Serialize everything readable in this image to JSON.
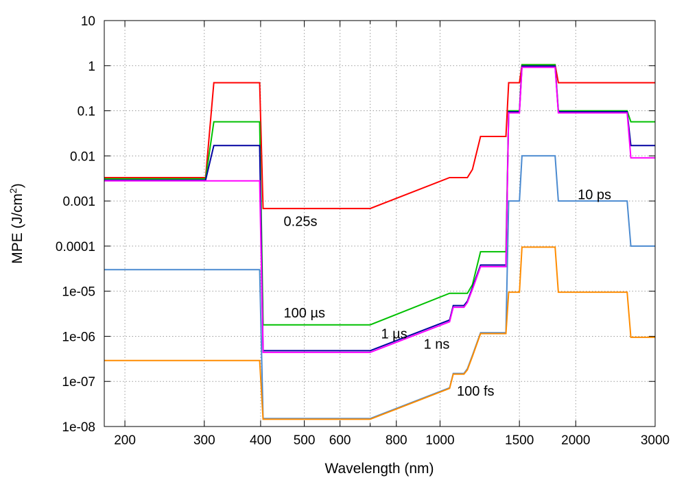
{
  "chart_data": {
    "type": "line",
    "title": "",
    "xlabel": "Wavelength (nm)",
    "ylabel_main": "MPE (J/cm",
    "ylabel_sup": "2",
    "ylabel_tail": ")",
    "x_scale": "log",
    "y_scale": "log",
    "xlim": [
      180,
      3000
    ],
    "ylim": [
      1e-08,
      10
    ],
    "grid": true,
    "x_major_ticks": [
      200,
      300,
      400,
      500,
      600,
      800,
      1000,
      1500,
      2000,
      3000
    ],
    "x_minor_ticks": [
      700
    ],
    "y_ticks": [
      1e-08,
      1e-07,
      1e-06,
      1e-05,
      0.0001,
      0.001,
      0.01,
      0.1,
      1,
      10
    ],
    "y_tick_labels": [
      "1e-08",
      "1e-07",
      "1e-06",
      "1e-05",
      "0.0001",
      "0.001",
      "0.01",
      "0.1",
      "1",
      "10"
    ],
    "annotations": [
      {
        "text": "0.25s",
        "x": 450,
        "y": 0.00028
      },
      {
        "text": "100 µs",
        "x": 450,
        "y": 2.6e-06
      },
      {
        "text": "1 µs",
        "x": 740,
        "y": 9e-07
      },
      {
        "text": "1 ns",
        "x": 920,
        "y": 5.3e-07
      },
      {
        "text": "100 fs",
        "x": 1090,
        "y": 4.8e-08
      },
      {
        "text": "10 ps",
        "x": 2020,
        "y": 0.0011
      }
    ],
    "series": [
      {
        "color": "#ff0000",
        "x": [
          180,
          302,
          315,
          398,
          405,
          700,
          1050,
          1150,
          1180,
          1230,
          1400,
          1420,
          1500,
          1520,
          1800,
          1830,
          3000
        ],
        "y": [
          0.0033,
          0.0033,
          0.42,
          0.42,
          0.00068,
          0.00068,
          0.0033,
          0.0033,
          0.005,
          0.027,
          0.027,
          0.42,
          0.42,
          1.05,
          1.05,
          0.42,
          0.42
        ]
      },
      {
        "color": "#00c000",
        "x": [
          180,
          302,
          315,
          398,
          405,
          700,
          1050,
          1150,
          1180,
          1230,
          1400,
          1420,
          1500,
          1520,
          1800,
          1830,
          2600,
          2650,
          3000
        ],
        "y": [
          0.0031,
          0.0031,
          0.057,
          0.057,
          1.8e-06,
          1.8e-06,
          9e-06,
          9e-06,
          1.4e-05,
          7.5e-05,
          7.5e-05,
          0.1,
          0.1,
          1.05,
          1.05,
          0.1,
          0.1,
          0.057,
          0.057
        ]
      },
      {
        "color": "#0000a0",
        "x": [
          180,
          302,
          315,
          398,
          405,
          700,
          1050,
          1070,
          1130,
          1150,
          1180,
          1230,
          1400,
          1420,
          1500,
          1520,
          1800,
          1830,
          2600,
          2650,
          3000
        ],
        "y": [
          0.0029,
          0.0029,
          0.017,
          0.017,
          4.8e-07,
          4.8e-07,
          2.3e-06,
          4.8e-06,
          4.8e-06,
          6e-06,
          1.2e-05,
          3.8e-05,
          3.8e-05,
          0.095,
          0.095,
          0.98,
          0.98,
          0.095,
          0.095,
          0.017,
          0.017
        ]
      },
      {
        "color": "#ff00ff",
        "x": [
          180,
          302,
          315,
          398,
          405,
          700,
          1050,
          1070,
          1130,
          1150,
          1180,
          1230,
          1400,
          1420,
          1500,
          1520,
          1800,
          1830,
          2600,
          2650,
          3000
        ],
        "y": [
          0.0028,
          0.0028,
          0.0028,
          0.0028,
          4.4e-07,
          4.4e-07,
          2.1e-06,
          4.4e-06,
          4.4e-06,
          5.6e-06,
          1.1e-05,
          3.5e-05,
          3.5e-05,
          0.09,
          0.09,
          0.92,
          0.92,
          0.09,
          0.09,
          0.009,
          0.009
        ]
      },
      {
        "color": "#4a8ad0",
        "x": [
          180,
          398,
          405,
          700,
          1050,
          1070,
          1130,
          1150,
          1180,
          1230,
          1400,
          1420,
          1500,
          1520,
          1800,
          1830,
          2600,
          2650,
          3000
        ],
        "y": [
          3e-05,
          3e-05,
          1.5e-08,
          1.5e-08,
          7.2e-08,
          1.5e-07,
          1.5e-07,
          1.9e-07,
          3.8e-07,
          1.2e-06,
          1.2e-06,
          0.001,
          0.001,
          0.01,
          0.01,
          0.001,
          0.001,
          0.0001,
          0.0001
        ]
      },
      {
        "color": "#ff8c00",
        "x": [
          180,
          398,
          405,
          700,
          1050,
          1070,
          1130,
          1150,
          1180,
          1230,
          1400,
          1420,
          1500,
          1520,
          1800,
          1830,
          2600,
          2650,
          3000
        ],
        "y": [
          2.9e-07,
          2.9e-07,
          1.45e-08,
          1.45e-08,
          7e-08,
          1.45e-07,
          1.45e-07,
          1.8e-07,
          3.6e-07,
          1.15e-06,
          1.15e-06,
          9.5e-06,
          9.5e-06,
          9.5e-05,
          9.5e-05,
          9.5e-06,
          9.5e-06,
          9.5e-07,
          9.5e-07
        ]
      }
    ]
  }
}
